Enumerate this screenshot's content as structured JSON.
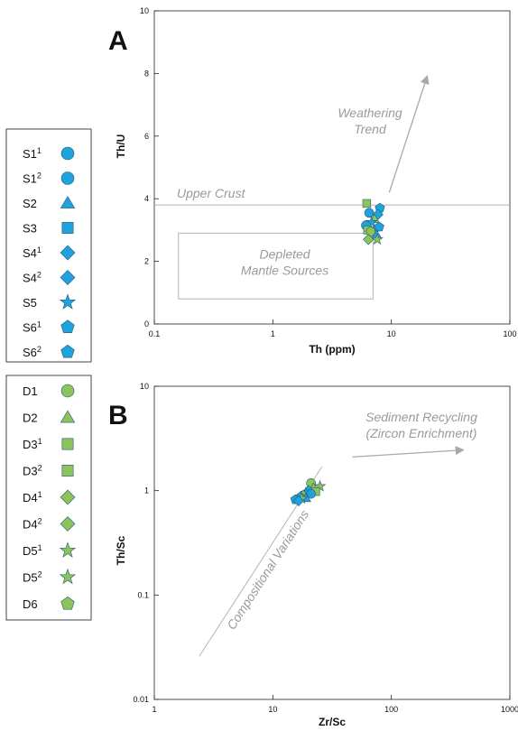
{
  "colors": {
    "blue": "#1ea3dc",
    "green": "#8cc35a",
    "trend_gray": "#a9a9a9",
    "box_gray": "#b3b3b3"
  },
  "legend_s": [
    {
      "name": "S1",
      "sup": "1",
      "shape": "circle"
    },
    {
      "name": "S1",
      "sup": "2",
      "shape": "circle"
    },
    {
      "name": "S2",
      "sup": "",
      "shape": "triangle"
    },
    {
      "name": "S3",
      "sup": "",
      "shape": "square"
    },
    {
      "name": "S4",
      "sup": "1",
      "shape": "diamond"
    },
    {
      "name": "S4",
      "sup": "2",
      "shape": "diamond"
    },
    {
      "name": "S5",
      "sup": "",
      "shape": "star"
    },
    {
      "name": "S6",
      "sup": "1",
      "shape": "pentagon"
    },
    {
      "name": "S6",
      "sup": "2",
      "shape": "pentagon"
    }
  ],
  "legend_d": [
    {
      "name": "D1",
      "sup": "",
      "shape": "circle"
    },
    {
      "name": "D2",
      "sup": "",
      "shape": "triangle"
    },
    {
      "name": "D3",
      "sup": "1",
      "shape": "square"
    },
    {
      "name": "D3",
      "sup": "2",
      "shape": "square"
    },
    {
      "name": "D4",
      "sup": "1",
      "shape": "diamond"
    },
    {
      "name": "D4",
      "sup": "2",
      "shape": "diamond"
    },
    {
      "name": "D5",
      "sup": "1",
      "shape": "star"
    },
    {
      "name": "D5",
      "sup": "2",
      "shape": "star"
    },
    {
      "name": "D6",
      "sup": "",
      "shape": "pentagon"
    }
  ],
  "chart_data": [
    {
      "type": "scatter",
      "panel": "A",
      "xlabel": "Th (ppm)",
      "ylabel": "Th/U",
      "xscale": "log",
      "xlim": [
        0.1,
        100
      ],
      "ylim": [
        0,
        10
      ],
      "xticks": [
        "0.1",
        "1",
        "10",
        "100"
      ],
      "yticks": [
        "0",
        "2",
        "4",
        "6",
        "8",
        "10"
      ],
      "annotations": {
        "upper_crust": "Upper Crust",
        "upper_crust_value": 3.8,
        "depleted_line1": "Depleted",
        "depleted_line2": "Mantle Sources",
        "depleted_region": {
          "x": [
            0.16,
            7.0
          ],
          "y": [
            0.8,
            2.9
          ]
        },
        "weathering_line1": "Weathering",
        "weathering_line2": "Trend",
        "weathering_arrow": {
          "from": [
            9.6,
            4.2
          ],
          "to": [
            20,
            7.9
          ]
        }
      },
      "points": [
        {
          "shape": "square",
          "color": "green",
          "x": 6.2,
          "y": 3.85
        },
        {
          "shape": "pentagon",
          "color": "blue",
          "x": 8.0,
          "y": 3.7
        },
        {
          "shape": "circle",
          "color": "blue",
          "x": 6.5,
          "y": 3.55
        },
        {
          "shape": "diamond",
          "color": "blue",
          "x": 7.7,
          "y": 3.5
        },
        {
          "shape": "triangle",
          "color": "green",
          "x": 7.2,
          "y": 3.35
        },
        {
          "shape": "star",
          "color": "blue",
          "x": 6.8,
          "y": 3.25
        },
        {
          "shape": "circle",
          "color": "blue",
          "x": 6.1,
          "y": 3.15
        },
        {
          "shape": "pentagon",
          "color": "blue",
          "x": 7.9,
          "y": 3.1
        },
        {
          "shape": "square",
          "color": "green",
          "x": 6.3,
          "y": 3.0
        },
        {
          "shape": "diamond",
          "color": "blue",
          "x": 7.0,
          "y": 2.95
        },
        {
          "shape": "circle",
          "color": "green",
          "x": 6.7,
          "y": 2.95
        },
        {
          "shape": "triangle",
          "color": "blue",
          "x": 7.5,
          "y": 2.85
        },
        {
          "shape": "diamond",
          "color": "green",
          "x": 6.4,
          "y": 2.7
        },
        {
          "shape": "star",
          "color": "green",
          "x": 7.6,
          "y": 2.7
        }
      ]
    },
    {
      "type": "scatter",
      "panel": "B",
      "xlabel": "Zr/Sc",
      "ylabel": "Th/Sc",
      "xscale": "log",
      "yscale": "log",
      "xlim": [
        1,
        1000
      ],
      "ylim": [
        0.01,
        10
      ],
      "xticks": [
        "1",
        "10",
        "100",
        "1000"
      ],
      "yticks": [
        "0.01",
        "0.1",
        "1",
        "10"
      ],
      "annotations": {
        "compositional": "Compositional Variations",
        "compositional_line": {
          "from": [
            2.4,
            0.026
          ],
          "to": [
            26,
            1.7
          ]
        },
        "recycling_line1": "Sediment Recycling",
        "recycling_line2": "(Zircon Enrichment)",
        "recycling_arrow": {
          "from": [
            47,
            2.1
          ],
          "to": [
            400,
            2.45
          ]
        }
      },
      "points": [
        {
          "shape": "circle",
          "color": "green",
          "x": 21,
          "y": 1.18
        },
        {
          "shape": "star",
          "color": "green",
          "x": 25,
          "y": 1.1
        },
        {
          "shape": "triangle",
          "color": "green",
          "x": 22,
          "y": 1.07
        },
        {
          "shape": "diamond",
          "color": "blue",
          "x": 20,
          "y": 1.0
        },
        {
          "shape": "square",
          "color": "green",
          "x": 23,
          "y": 0.98
        },
        {
          "shape": "star",
          "color": "blue",
          "x": 19,
          "y": 0.95
        },
        {
          "shape": "circle",
          "color": "blue",
          "x": 21,
          "y": 0.93
        },
        {
          "shape": "diamond",
          "color": "green",
          "x": 18,
          "y": 0.9
        },
        {
          "shape": "pentagon",
          "color": "blue",
          "x": 17,
          "y": 0.87
        },
        {
          "shape": "triangle",
          "color": "blue",
          "x": 19,
          "y": 0.85
        },
        {
          "shape": "star",
          "color": "green",
          "x": 17.5,
          "y": 0.84
        },
        {
          "shape": "pentagon",
          "color": "blue",
          "x": 15.5,
          "y": 0.82
        },
        {
          "shape": "diamond",
          "color": "blue",
          "x": 16.5,
          "y": 0.8
        }
      ]
    }
  ]
}
